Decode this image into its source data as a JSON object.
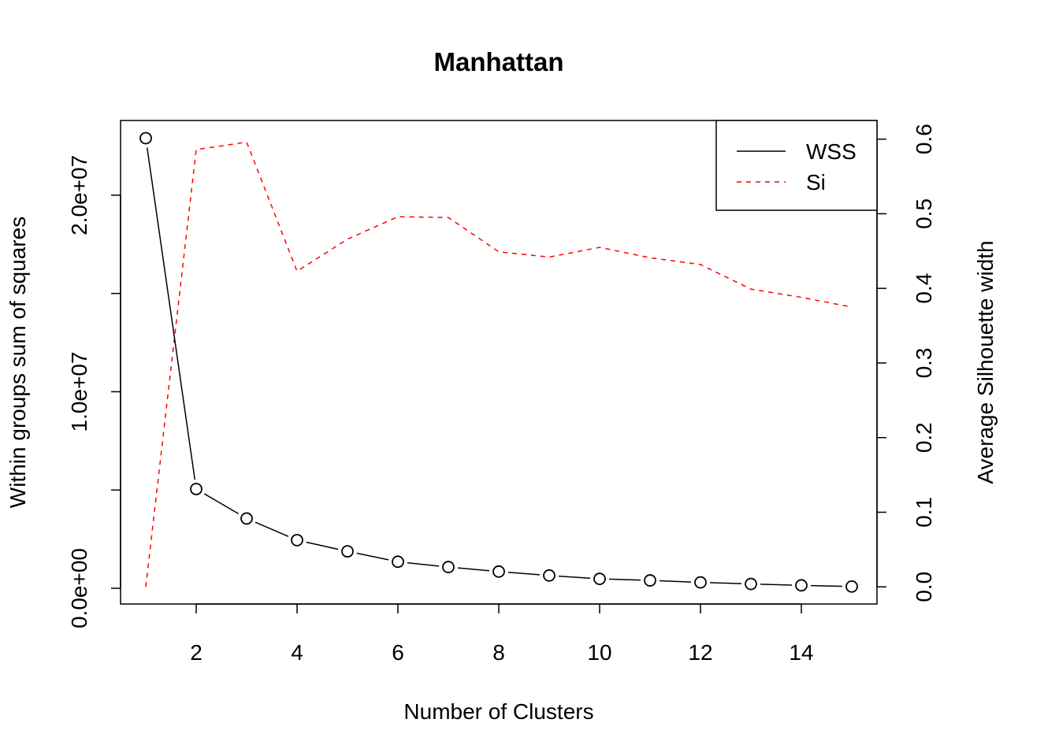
{
  "chart_data": {
    "type": "line",
    "title": "Manhattan",
    "xlabel": "Number of Clusters",
    "ylabel_left": "Within groups sum of squares",
    "ylabel_right": "Average Silhouette width",
    "x": [
      1,
      2,
      3,
      4,
      5,
      6,
      7,
      8,
      9,
      10,
      11,
      12,
      13,
      14,
      15
    ],
    "xlim": [
      0.5,
      15.5
    ],
    "x_ticks": [
      2,
      4,
      6,
      8,
      10,
      12,
      14
    ],
    "x_tick_labels": [
      "2",
      "4",
      "6",
      "8",
      "10",
      "12",
      "14"
    ],
    "ylim_left": [
      -800000,
      23800000
    ],
    "y_left_ticks": [
      0,
      5000000,
      10000000,
      15000000,
      20000000
    ],
    "y_left_tick_labels": [
      "0.0e+00",
      "",
      "1.0e+07",
      "",
      "2.0e+07"
    ],
    "ylim_right": [
      -0.023,
      0.625
    ],
    "y_right_ticks": [
      0.0,
      0.1,
      0.2,
      0.3,
      0.4,
      0.5,
      0.6
    ],
    "y_right_tick_labels": [
      "0.0",
      "0.1",
      "0.2",
      "0.3",
      "0.4",
      "0.5",
      "0.6"
    ],
    "legend_position": "top-right",
    "series": [
      {
        "name": "WSS",
        "axis": "left",
        "line_style": "solid-with-circle-points",
        "color": "#000000",
        "values": [
          22900000,
          5050000,
          3550000,
          2450000,
          1880000,
          1350000,
          1080000,
          850000,
          650000,
          480000,
          400000,
          300000,
          220000,
          150000,
          90000
        ]
      },
      {
        "name": "Si",
        "axis": "right",
        "line_style": "dashed",
        "color": "#ff0000",
        "values": [
          0.0,
          0.586,
          0.596,
          0.423,
          0.466,
          0.496,
          0.495,
          0.449,
          0.442,
          0.455,
          0.441,
          0.432,
          0.399,
          0.388,
          0.375
        ]
      }
    ]
  }
}
